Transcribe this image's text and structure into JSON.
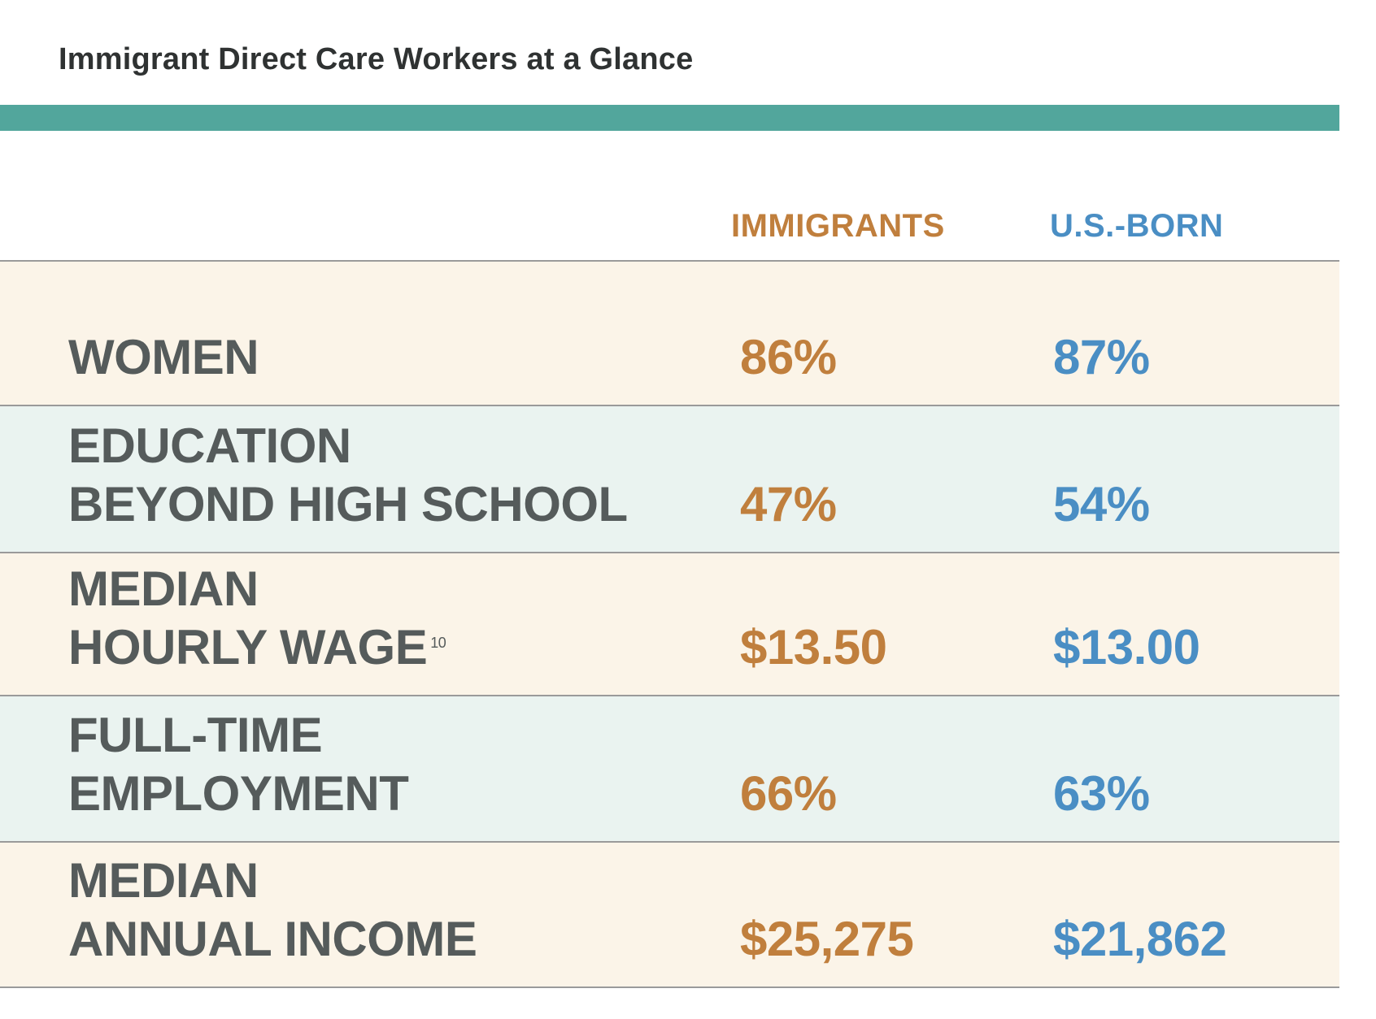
{
  "title": "Immigrant Direct Care Workers at a Glance",
  "colors": {
    "accent_bar": "#52a69c",
    "immigrants": "#c07f3d",
    "us_born": "#4a8ec4",
    "label": "#555b5b",
    "row_cream": "#fbf4e8",
    "row_mint": "#eaf3f0"
  },
  "chart_data": {
    "type": "table",
    "columns": [
      "IMMIGRANTS",
      "U.S.-BORN"
    ],
    "rows": [
      {
        "label_lines": [
          "WOMEN"
        ],
        "footnote": "",
        "immigrants": "86%",
        "us_born": "87%"
      },
      {
        "label_lines": [
          "EDUCATION",
          "BEYOND HIGH SCHOOL"
        ],
        "footnote": "",
        "immigrants": "47%",
        "us_born": "54%"
      },
      {
        "label_lines": [
          "MEDIAN",
          "HOURLY WAGE"
        ],
        "footnote": "10",
        "immigrants": "$13.50",
        "us_born": "$13.00"
      },
      {
        "label_lines": [
          "FULL-TIME",
          "EMPLOYMENT"
        ],
        "footnote": "",
        "immigrants": "66%",
        "us_born": "63%"
      },
      {
        "label_lines": [
          "MEDIAN",
          "ANNUAL INCOME"
        ],
        "footnote": "",
        "immigrants": "$25,275",
        "us_born": "$21,862"
      }
    ]
  }
}
